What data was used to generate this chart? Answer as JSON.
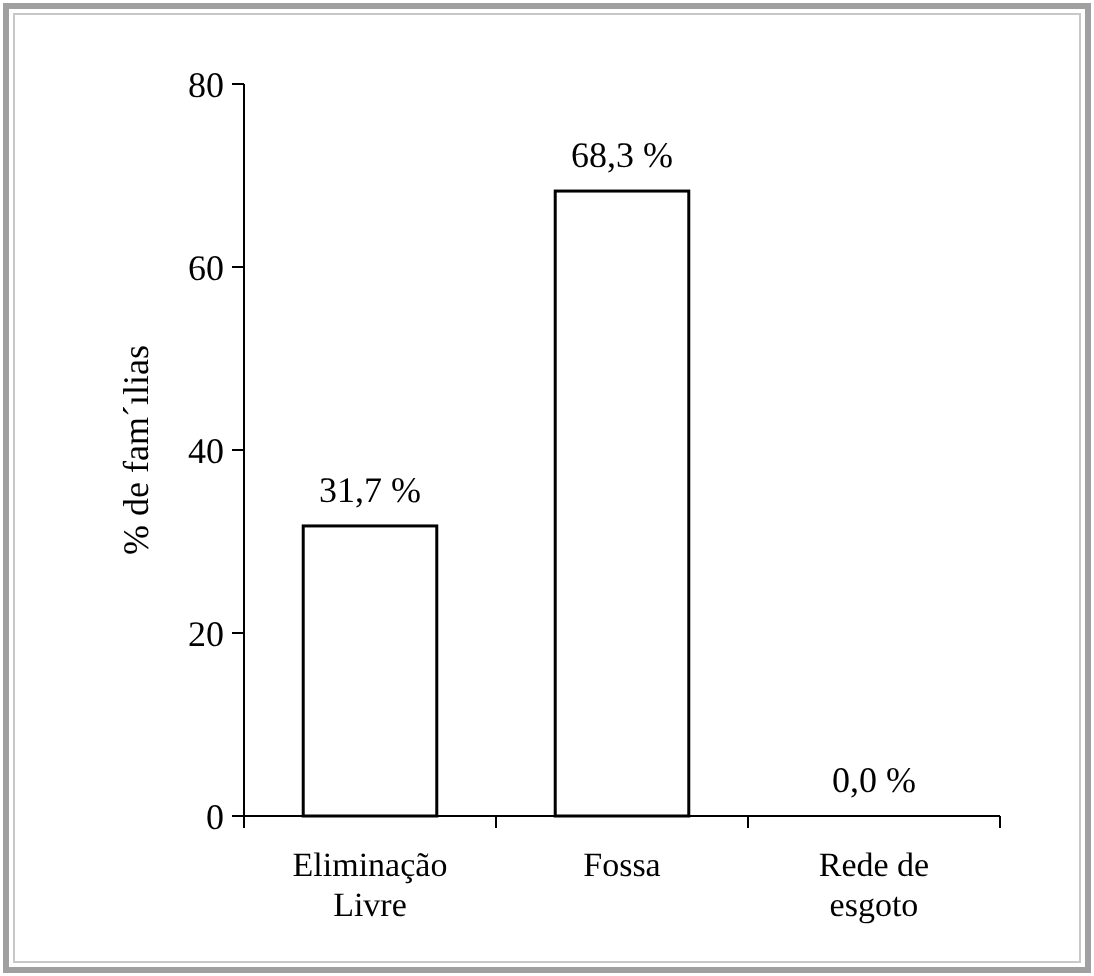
{
  "chart_data": {
    "type": "bar",
    "ylabel": "% de fam´ılias",
    "categories": [
      "Eliminação Livre",
      "Fossa",
      "Rede de esgoto"
    ],
    "values": [
      31.7,
      68.3,
      0
    ],
    "value_labels": [
      "31,7 %",
      "68,3 %",
      "0,0 %"
    ],
    "color": "#ffffff",
    "ylim": [
      0,
      80
    ],
    "yticks": [
      0,
      20,
      40,
      60,
      80
    ],
    "grid": false
  }
}
